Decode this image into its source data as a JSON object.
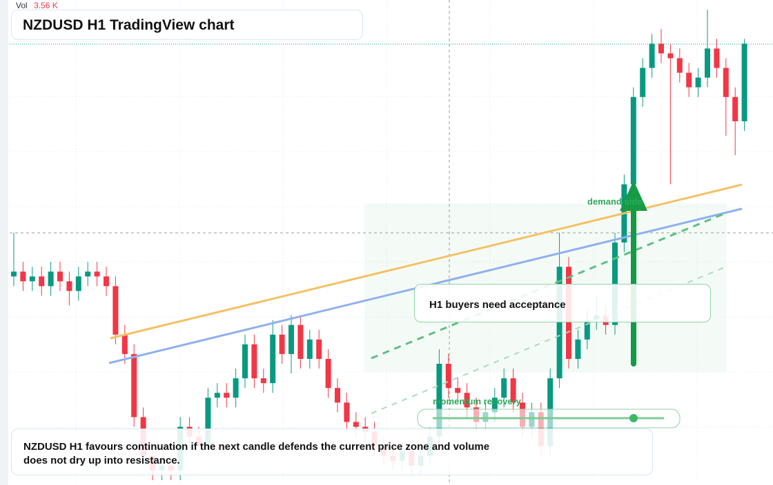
{
  "chart_data": {
    "type": "candlestick",
    "title": "NZDUSD H1 TradingView chart",
    "volume_label": "Vol",
    "volume": {
      "value": 3560,
      "label": "3.56 K"
    },
    "annotations": [
      "demand side",
      "momentum recovery",
      "H1 buyers need acceptance"
    ],
    "caption": "NZDUSD H1 favours continuation if the next candle defends the current price zone and volume does not dry up into resistance.",
    "up_color": "#089981",
    "down_color": "#f23645",
    "ylim": [
      0,
      100
    ],
    "open": [
      43,
      44,
      42,
      43,
      41,
      44,
      42,
      40,
      43,
      44,
      43,
      41,
      31,
      27,
      14,
      6,
      3,
      4,
      3,
      12,
      10,
      8,
      18,
      19,
      18,
      22,
      29,
      22,
      21,
      31,
      27,
      33,
      26,
      30,
      26,
      20,
      17,
      13,
      12,
      11,
      8,
      6,
      5,
      7,
      4,
      6,
      10,
      25,
      20,
      19,
      16,
      13,
      15,
      18,
      22,
      17,
      12,
      15,
      8,
      22,
      45,
      26,
      30,
      34,
      35,
      33,
      50,
      62,
      80,
      86,
      91,
      89,
      88,
      85,
      82,
      84,
      90,
      86,
      80,
      75
    ],
    "high": [
      52,
      46,
      45,
      45,
      46,
      46,
      44,
      45,
      46,
      46,
      45,
      43,
      33,
      29,
      16,
      8,
      6,
      6,
      14,
      14,
      12,
      20,
      21,
      21,
      24,
      31,
      31,
      24,
      34,
      33,
      35,
      35,
      32,
      32,
      28,
      22,
      19,
      15,
      14,
      13,
      10,
      8,
      9,
      9,
      8,
      12,
      28,
      27,
      22,
      21,
      18,
      17,
      20,
      24,
      24,
      19,
      17,
      17,
      24,
      52,
      47,
      32,
      36,
      39,
      37,
      52,
      64,
      82,
      88,
      93,
      94,
      91,
      90,
      87,
      86,
      98,
      92,
      88,
      82,
      92
    ],
    "low": [
      41,
      40,
      40,
      39,
      39,
      40,
      37,
      38,
      41,
      41,
      39,
      29,
      25,
      12,
      4,
      1,
      1,
      1,
      1,
      8,
      6,
      6,
      16,
      16,
      16,
      20,
      20,
      19,
      19,
      25,
      23,
      24,
      24,
      24,
      18,
      15,
      11,
      10,
      9,
      6,
      4,
      3,
      3,
      2,
      2,
      4,
      8,
      18,
      17,
      14,
      11,
      11,
      13,
      16,
      15,
      10,
      10,
      6,
      6,
      20,
      24,
      24,
      28,
      32,
      31,
      31,
      48,
      60,
      78,
      84,
      87,
      62,
      83,
      80,
      80,
      82,
      84,
      72,
      68,
      73
    ],
    "close": [
      44,
      42,
      43,
      41,
      44,
      42,
      40,
      43,
      44,
      43,
      41,
      31,
      27,
      14,
      6,
      3,
      4,
      3,
      12,
      10,
      8,
      18,
      19,
      18,
      22,
      29,
      22,
      21,
      31,
      27,
      33,
      26,
      30,
      26,
      20,
      17,
      13,
      12,
      11,
      8,
      6,
      5,
      7,
      4,
      6,
      10,
      25,
      20,
      19,
      16,
      13,
      15,
      18,
      22,
      17,
      12,
      15,
      8,
      22,
      45,
      26,
      30,
      34,
      35,
      33,
      50,
      62,
      80,
      86,
      91,
      89,
      88,
      85,
      82,
      84,
      90,
      86,
      80,
      75,
      91
    ]
  }
}
